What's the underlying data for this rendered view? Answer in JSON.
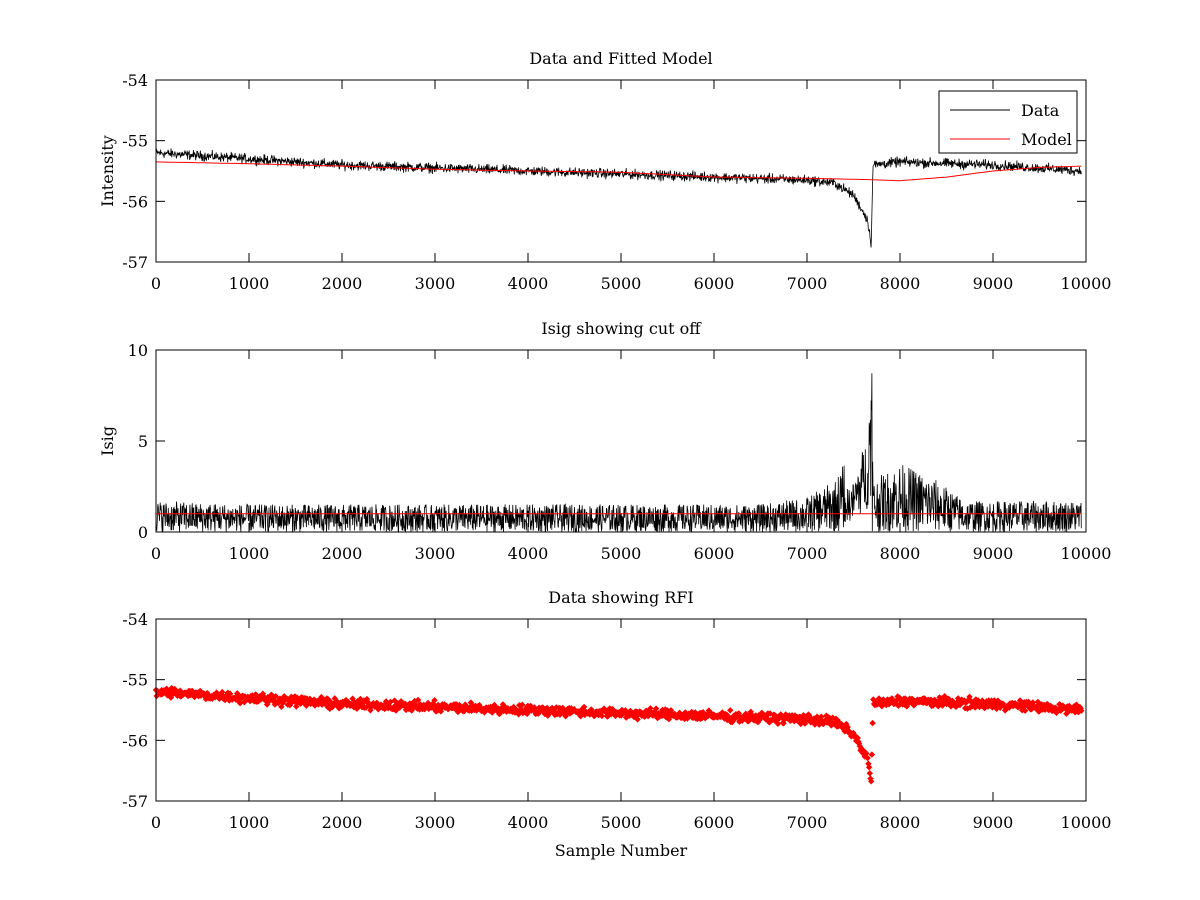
{
  "chart_data": [
    {
      "type": "line",
      "title": "Data and Fitted Model",
      "xlabel": "",
      "ylabel": "Intensity",
      "xlim": [
        0,
        10000
      ],
      "ylim": [
        -57,
        -54
      ],
      "xticks": [
        0,
        1000,
        2000,
        3000,
        4000,
        5000,
        6000,
        7000,
        8000,
        9000,
        10000
      ],
      "yticks": [
        -57,
        -56,
        -55,
        -54
      ],
      "legend": {
        "placement": "top-right",
        "entries": [
          "Data",
          "Model"
        ]
      },
      "series": [
        {
          "name": "Data",
          "color": "#000000",
          "style": "line",
          "approx_trend": {
            "x": [
              0,
              1000,
              2000,
              3000,
              4000,
              5000,
              6000,
              7000,
              7300,
              7500,
              7650,
              7690,
              7710,
              8000,
              9000,
              9950
            ],
            "y": [
              -55.2,
              -55.3,
              -55.4,
              -55.45,
              -55.5,
              -55.55,
              -55.6,
              -55.65,
              -55.7,
              -55.9,
              -56.3,
              -56.7,
              -55.4,
              -55.35,
              -55.4,
              -55.5
            ]
          },
          "noise_amplitude": 0.12
        },
        {
          "name": "Model",
          "color": "#ff0000",
          "style": "line",
          "approx_trend": {
            "x": [
              0,
              1000,
              2000,
              3000,
              4000,
              5000,
              6000,
              7000,
              7600,
              8000,
              8500,
              9000,
              9500,
              9950
            ],
            "y": [
              -55.35,
              -55.38,
              -55.42,
              -55.47,
              -55.5,
              -55.52,
              -55.6,
              -55.62,
              -55.64,
              -55.66,
              -55.6,
              -55.5,
              -55.44,
              -55.42
            ]
          }
        }
      ]
    },
    {
      "type": "line",
      "title": "Isig showing cut off",
      "xlabel": "",
      "ylabel": "Isig",
      "xlim": [
        0,
        10000
      ],
      "ylim": [
        0,
        10
      ],
      "xticks": [
        0,
        1000,
        2000,
        3000,
        4000,
        5000,
        6000,
        7000,
        8000,
        9000,
        10000
      ],
      "yticks": [
        0,
        5,
        10
      ],
      "series": [
        {
          "name": "Isig",
          "color": "#000000",
          "style": "line",
          "approx_trend": {
            "x": [
              0,
              1000,
              3000,
              5000,
              6500,
              7000,
              7300,
              7500,
              7650,
              7690,
              7710,
              8000,
              8400,
              8700,
              9950
            ],
            "y": [
              0.9,
              0.8,
              0.8,
              0.8,
              0.8,
              1.0,
              1.5,
              2.5,
              5.0,
              8.3,
              1.5,
              2.0,
              1.5,
              0.9,
              0.9
            ]
          },
          "noise_amplitude": 0.9
        },
        {
          "name": "Cut off",
          "color": "#ff0000",
          "style": "line",
          "approx_trend": {
            "x": [
              0,
              9950
            ],
            "y": [
              1.0,
              1.0
            ]
          }
        }
      ]
    },
    {
      "type": "scatter",
      "title": "Data showing RFI",
      "xlabel": "Sample Number",
      "ylabel": "",
      "xlim": [
        0,
        10000
      ],
      "ylim": [
        -57,
        -54
      ],
      "xticks": [
        0,
        1000,
        2000,
        3000,
        4000,
        5000,
        6000,
        7000,
        8000,
        9000,
        10000
      ],
      "yticks": [
        -57,
        -56,
        -55,
        -54
      ],
      "series": [
        {
          "name": "RFI",
          "color": "#ff0000",
          "style": "markers",
          "approx_trend": {
            "x": [
              0,
              1000,
              2000,
              3000,
              4000,
              5000,
              6000,
              7000,
              7300,
              7500,
              7650,
              7690,
              7710,
              8000,
              9000,
              9950
            ],
            "y": [
              -55.2,
              -55.3,
              -55.4,
              -55.45,
              -55.5,
              -55.55,
              -55.6,
              -55.65,
              -55.7,
              -55.9,
              -56.3,
              -56.7,
              -55.4,
              -55.35,
              -55.4,
              -55.5
            ]
          },
          "noise_amplitude": 0.12
        }
      ]
    }
  ]
}
